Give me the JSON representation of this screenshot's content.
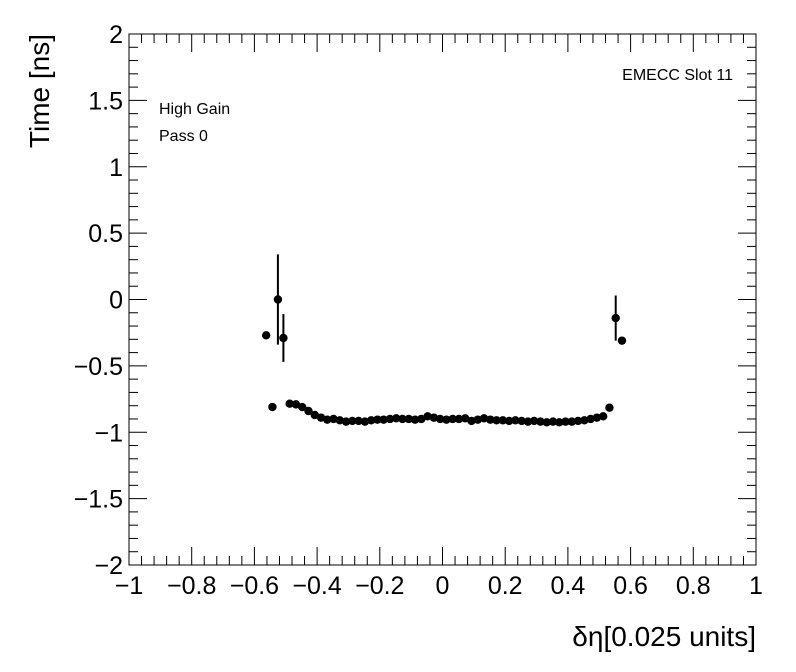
{
  "chart_data": {
    "type": "scatter",
    "xlabel": "δη[0.025 units]",
    "ylabel": "Time [ns]",
    "xlim": [
      -1,
      1
    ],
    "ylim": [
      -2,
      2
    ],
    "x_ticks": [
      -1,
      -0.8,
      -0.6,
      -0.4,
      -0.2,
      0,
      0.2,
      0.4,
      0.6,
      0.8,
      1
    ],
    "x_tick_labels": [
      "−1",
      "−0.8",
      "−0.6",
      "−0.4",
      "−0.2",
      "0",
      "0.2",
      "0.4",
      "0.6",
      "0.8",
      "1"
    ],
    "y_ticks": [
      -2,
      -1.5,
      -1,
      -0.5,
      0,
      0.5,
      1,
      1.5,
      2
    ],
    "y_tick_labels": [
      "−2",
      "−1.5",
      "−1",
      "−0.5",
      "0",
      "0.5",
      "1",
      "1.5",
      "2"
    ],
    "grid": false,
    "marker_color": "#000000",
    "annotations": {
      "top_right": "EMECC Slot 11",
      "line1": "High Gain",
      "line2": "Pass 0"
    },
    "points": [
      {
        "x": -0.5625,
        "y": -0.27,
        "err": 0.0
      },
      {
        "x": -0.5425,
        "y": -0.81,
        "err": 0.0
      },
      {
        "x": -0.525,
        "y": 0.0,
        "err": 0.34
      },
      {
        "x": -0.5075,
        "y": -0.29,
        "err": 0.18
      },
      {
        "x": -0.4875,
        "y": -0.785,
        "err": 0.0
      },
      {
        "x": -0.4675,
        "y": -0.79,
        "err": 0.0
      },
      {
        "x": -0.4475,
        "y": -0.81,
        "err": 0.0
      },
      {
        "x": -0.4275,
        "y": -0.84,
        "err": 0.0
      },
      {
        "x": -0.4075,
        "y": -0.87,
        "err": 0.0
      },
      {
        "x": -0.3875,
        "y": -0.89,
        "err": 0.0
      },
      {
        "x": -0.3675,
        "y": -0.905,
        "err": 0.0
      },
      {
        "x": -0.3475,
        "y": -0.9,
        "err": 0.0
      },
      {
        "x": -0.3275,
        "y": -0.91,
        "err": 0.0
      },
      {
        "x": -0.3075,
        "y": -0.92,
        "err": 0.0
      },
      {
        "x": -0.2875,
        "y": -0.915,
        "err": 0.0
      },
      {
        "x": -0.2675,
        "y": -0.915,
        "err": 0.0
      },
      {
        "x": -0.2475,
        "y": -0.92,
        "err": 0.0
      },
      {
        "x": -0.2275,
        "y": -0.91,
        "err": 0.0
      },
      {
        "x": -0.2075,
        "y": -0.905,
        "err": 0.0
      },
      {
        "x": -0.1875,
        "y": -0.905,
        "err": 0.0
      },
      {
        "x": -0.1675,
        "y": -0.9,
        "err": 0.0
      },
      {
        "x": -0.1475,
        "y": -0.895,
        "err": 0.0
      },
      {
        "x": -0.1275,
        "y": -0.9,
        "err": 0.0
      },
      {
        "x": -0.1075,
        "y": -0.9,
        "err": 0.0
      },
      {
        "x": -0.0875,
        "y": -0.905,
        "err": 0.0
      },
      {
        "x": -0.0675,
        "y": -0.9,
        "err": 0.0
      },
      {
        "x": -0.0475,
        "y": -0.88,
        "err": 0.0
      },
      {
        "x": -0.0275,
        "y": -0.89,
        "err": 0.0
      },
      {
        "x": -0.0075,
        "y": -0.9,
        "err": 0.0
      },
      {
        "x": 0.0125,
        "y": -0.905,
        "err": 0.0
      },
      {
        "x": 0.0325,
        "y": -0.9,
        "err": 0.0
      },
      {
        "x": 0.0525,
        "y": -0.9,
        "err": 0.0
      },
      {
        "x": 0.0725,
        "y": -0.895,
        "err": 0.0
      },
      {
        "x": 0.0925,
        "y": -0.915,
        "err": 0.0
      },
      {
        "x": 0.1125,
        "y": -0.905,
        "err": 0.0
      },
      {
        "x": 0.1325,
        "y": -0.895,
        "err": 0.0
      },
      {
        "x": 0.1525,
        "y": -0.905,
        "err": 0.0
      },
      {
        "x": 0.1725,
        "y": -0.91,
        "err": 0.0
      },
      {
        "x": 0.1925,
        "y": -0.91,
        "err": 0.0
      },
      {
        "x": 0.2125,
        "y": -0.915,
        "err": 0.0
      },
      {
        "x": 0.2325,
        "y": -0.91,
        "err": 0.0
      },
      {
        "x": 0.2525,
        "y": -0.915,
        "err": 0.0
      },
      {
        "x": 0.2725,
        "y": -0.92,
        "err": 0.0
      },
      {
        "x": 0.2925,
        "y": -0.915,
        "err": 0.0
      },
      {
        "x": 0.3125,
        "y": -0.92,
        "err": 0.0
      },
      {
        "x": 0.3325,
        "y": -0.925,
        "err": 0.0
      },
      {
        "x": 0.3525,
        "y": -0.92,
        "err": 0.0
      },
      {
        "x": 0.3725,
        "y": -0.925,
        "err": 0.0
      },
      {
        "x": 0.3925,
        "y": -0.92,
        "err": 0.0
      },
      {
        "x": 0.4125,
        "y": -0.92,
        "err": 0.0
      },
      {
        "x": 0.4325,
        "y": -0.915,
        "err": 0.0
      },
      {
        "x": 0.4525,
        "y": -0.91,
        "err": 0.0
      },
      {
        "x": 0.4725,
        "y": -0.9,
        "err": 0.0
      },
      {
        "x": 0.4925,
        "y": -0.89,
        "err": 0.0
      },
      {
        "x": 0.5125,
        "y": -0.88,
        "err": 0.0
      },
      {
        "x": 0.5325,
        "y": -0.815,
        "err": 0.0
      },
      {
        "x": 0.5525,
        "y": -0.14,
        "err": 0.17
      },
      {
        "x": 0.5725,
        "y": -0.31,
        "err": 0.0
      }
    ]
  }
}
